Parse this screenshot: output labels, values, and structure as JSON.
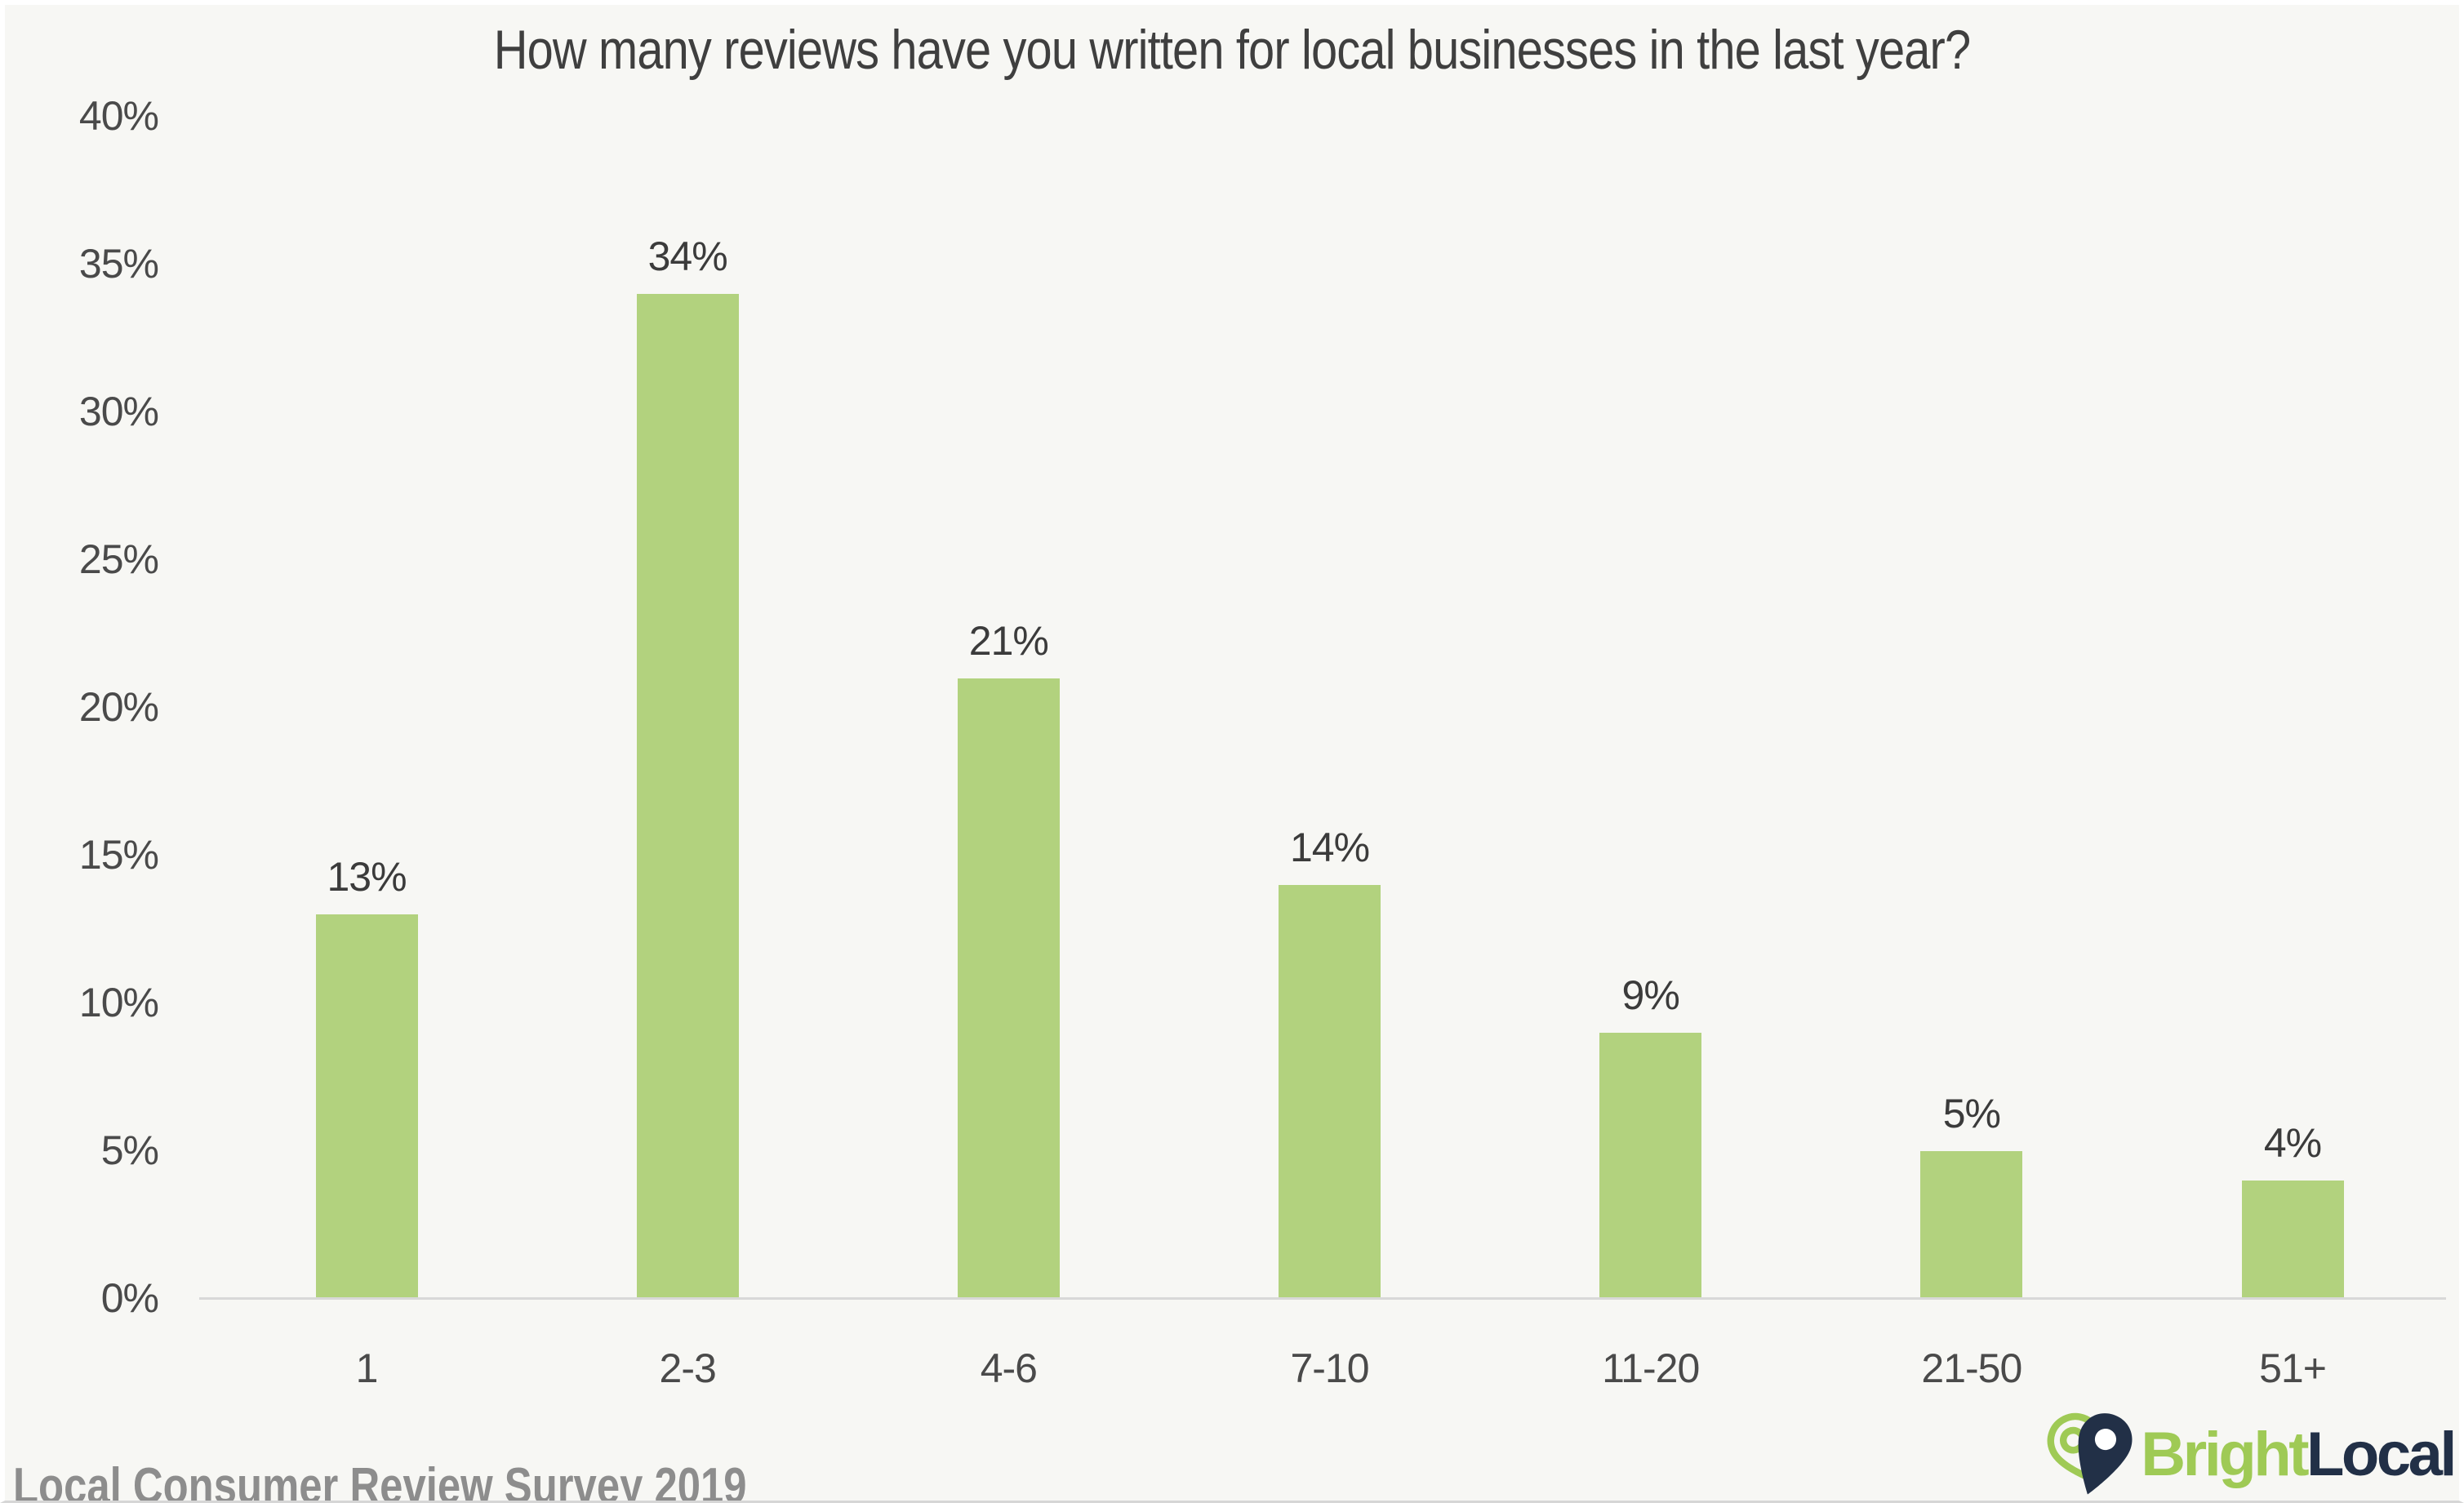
{
  "title": "How many reviews have you written for local businesses in the last year?",
  "footer": {
    "source": "Local Consumer Review Survey 2019"
  },
  "logo": {
    "text_primary": "Bright",
    "text_secondary": "Local"
  },
  "colors": {
    "background": "#f7f7f4",
    "bar": "#b2d27e",
    "title_text": "#3f3f3f",
    "axis_text": "#4a4a4a",
    "value_label_text": "#3b3b3b",
    "axis_line": "#d8d8d8",
    "footer_text": "#8d8d8d",
    "brand_green": "#9fca55",
    "brand_navy": "#223047"
  },
  "chart_data": {
    "type": "bar",
    "title": "How many reviews have you written for local businesses in the last year?",
    "categories": [
      "1",
      "2-3",
      "4-6",
      "7-10",
      "11-20",
      "21-50",
      "51+"
    ],
    "values": [
      13,
      34,
      21,
      14,
      9,
      5,
      4
    ],
    "value_suffix": "%",
    "xlabel": "",
    "ylabel": "",
    "ylim": [
      0,
      40
    ],
    "y_ticks": [
      0,
      5,
      10,
      15,
      20,
      25,
      30,
      35,
      40
    ],
    "y_tick_suffix": "%",
    "grid": false,
    "legend": false,
    "bar_color": "#b2d27e"
  }
}
